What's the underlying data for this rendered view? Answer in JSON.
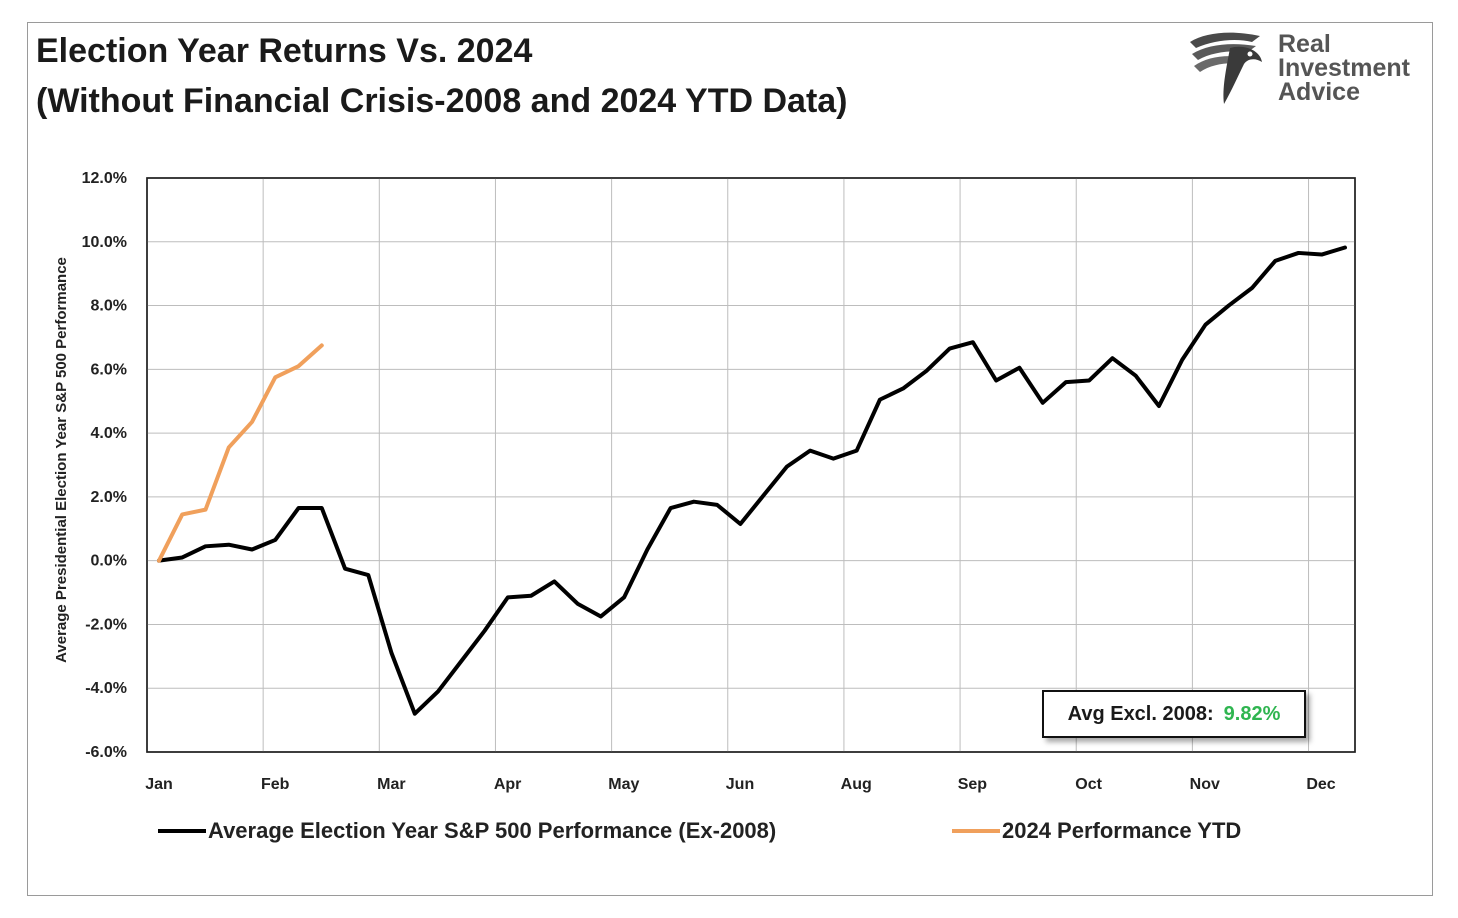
{
  "header": {
    "title_line1": "Election Year Returns Vs. 2024",
    "title_line2": "(Without Financial Crisis-2008 and 2024 YTD Data)"
  },
  "logo": {
    "line1": "Real",
    "line2": "Investment",
    "line3": "Advice"
  },
  "callout": {
    "label": "Avg Excl. 2008:",
    "value": "9.82%",
    "value_color": "#2fb550"
  },
  "chart_data": {
    "type": "line",
    "title": "Election Year Returns Vs. 2024 (Without Financial Crisis-2008 and 2024 YTD Data)",
    "ylabel": "Average Presidential Election Year S&P 500 Performance",
    "xlabel": "",
    "ylim": [
      -6.0,
      12.0
    ],
    "y_ticks": [
      12.0,
      10.0,
      8.0,
      6.0,
      4.0,
      2.0,
      0.0,
      -2.0,
      -4.0,
      -6.0
    ],
    "y_tick_labels": [
      "12.0%",
      "10.0%",
      "8.0%",
      "6.0%",
      "4.0%",
      "2.0%",
      "0.0%",
      "-2.0%",
      "-4.0%",
      "-6.0%"
    ],
    "x_tick_labels": [
      "Jan",
      "Feb",
      "Mar",
      "Apr",
      "May",
      "Jun",
      "Aug",
      "Sep",
      "Oct",
      "Nov",
      "Dec"
    ],
    "xlim": [
      0,
      52
    ],
    "grid": true,
    "legend_position": "bottom",
    "series": [
      {
        "name": "Average Election Year S&P 500 Performance (Ex-2008)",
        "color": "#000000",
        "x": [
          0,
          1,
          2,
          3,
          4,
          5,
          6,
          7,
          8,
          9,
          10,
          11,
          12,
          13,
          14,
          15,
          16,
          17,
          18,
          19,
          20,
          21,
          22,
          23,
          24,
          25,
          26,
          27,
          28,
          29,
          30,
          31,
          32,
          33,
          34,
          35,
          36,
          37,
          38,
          39,
          40,
          41,
          42,
          43,
          44,
          45,
          46,
          47,
          48,
          49,
          50,
          51
        ],
        "values": [
          0.0,
          0.1,
          0.45,
          0.5,
          0.35,
          0.65,
          1.65,
          1.65,
          -0.25,
          -0.45,
          -2.9,
          -4.8,
          -4.1,
          -3.15,
          -2.2,
          -1.15,
          -1.1,
          -0.65,
          -1.35,
          -1.75,
          -1.15,
          0.35,
          1.65,
          1.85,
          1.75,
          1.15,
          2.05,
          2.95,
          3.45,
          3.2,
          3.45,
          5.05,
          5.4,
          5.95,
          6.65,
          6.85,
          5.65,
          6.05,
          4.95,
          5.6,
          5.65,
          6.35,
          5.8,
          4.85,
          6.3,
          7.4,
          8.0,
          8.55,
          9.4,
          9.65,
          9.6,
          9.82
        ]
      },
      {
        "name": "2024 Performance YTD",
        "color": "#f0a05c",
        "x": [
          0,
          1,
          2,
          3,
          4,
          5,
          6,
          7
        ],
        "values": [
          0.0,
          1.45,
          1.6,
          3.55,
          4.35,
          5.75,
          6.1,
          6.75
        ]
      }
    ]
  }
}
